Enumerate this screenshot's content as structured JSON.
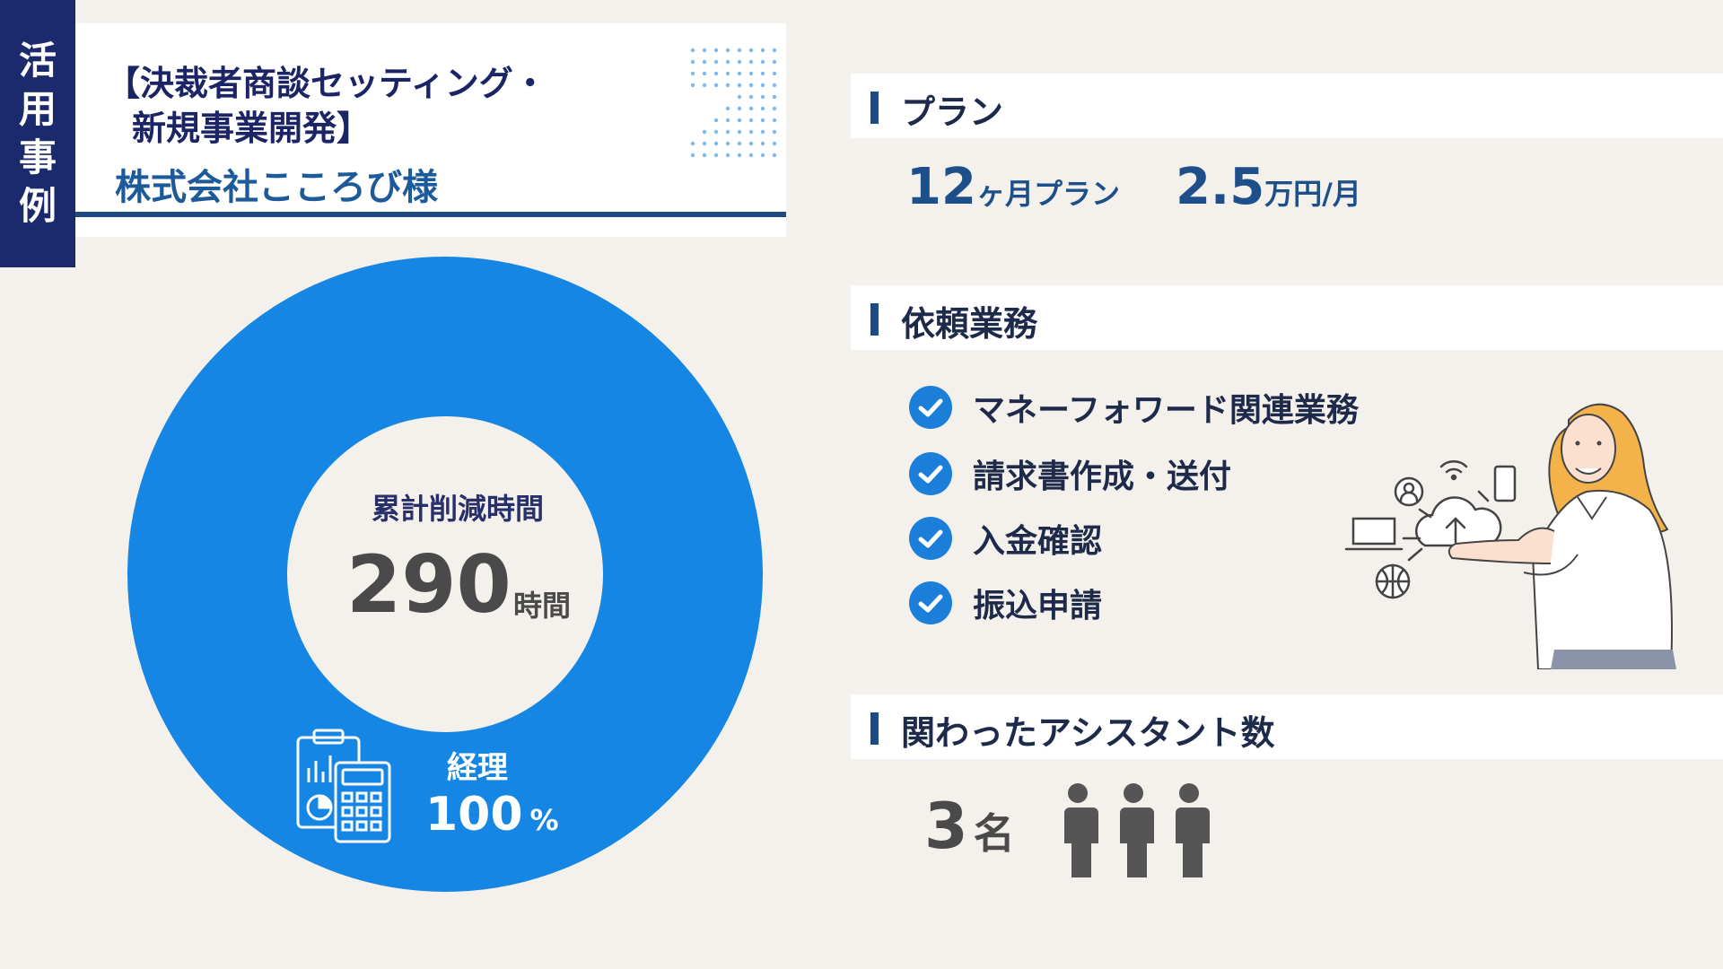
{
  "tag": {
    "chars": [
      "活",
      "用",
      "事",
      "例"
    ]
  },
  "title": {
    "line1": "【決裁者商談セッティング・",
    "line2": "新規事業開発】",
    "company": "株式会社こころび様"
  },
  "chart_data": {
    "type": "pie",
    "categories": [
      "経理"
    ],
    "values": [
      100
    ],
    "caption": "累計削減時間",
    "total": "290",
    "total_unit": "時間",
    "segment_label": "経理",
    "segment_value": "100",
    "segment_unit": "%"
  },
  "plan": {
    "header": "プラン",
    "months": "12",
    "months_unit": "ヶ月プラン",
    "price": "2.5",
    "price_unit": "万円/月"
  },
  "tasks": {
    "header": "依頼業務",
    "items": [
      "マネーフォワード関連業務",
      "請求書作成・送付",
      "入金確認",
      "振込申請"
    ]
  },
  "assistants": {
    "header": "関わったアシスタント数",
    "count": "3",
    "unit": "名"
  },
  "colors": {
    "navy": "#1a2a6c",
    "accent_blue": "#1586e3",
    "dark_blue": "#1f4a82",
    "check_blue": "#1b7fd9",
    "background": "#f4f0eb"
  }
}
